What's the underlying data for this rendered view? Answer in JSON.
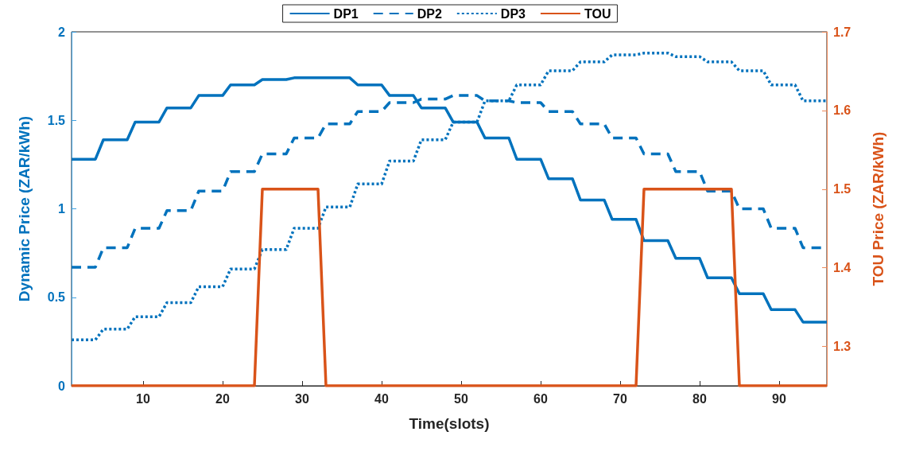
{
  "chart_data": {
    "type": "line",
    "xlabel": "Time(slots)",
    "ylabel": "Dynamic Price (ZAR/kWh)",
    "y2label": "TOU Price (ZAR/kWh)",
    "x": [
      1,
      4,
      5,
      8,
      9,
      12,
      13,
      16,
      17,
      20,
      21,
      24,
      25,
      28,
      29,
      32,
      33,
      36,
      37,
      40,
      41,
      44,
      45,
      48,
      49,
      52,
      53,
      56,
      57,
      60,
      61,
      64,
      65,
      68,
      69,
      72,
      73,
      76,
      77,
      80,
      81,
      84,
      85,
      88,
      89,
      92,
      93,
      96
    ],
    "xlim": [
      1,
      96
    ],
    "xticks": [
      10,
      20,
      30,
      40,
      50,
      60,
      70,
      80,
      90
    ],
    "ylim": [
      0,
      2
    ],
    "yticks": [
      0,
      0.5,
      1,
      1.5,
      2
    ],
    "y2lim": [
      1.25,
      1.7
    ],
    "y2ticks": [
      1.3,
      1.4,
      1.5,
      1.6,
      1.7
    ],
    "grid": false,
    "legend": "top",
    "marker": "none",
    "series": [
      {
        "name": "DP1",
        "color": "#0072bd",
        "line_style": "solid",
        "values": [
          1.28,
          1.28,
          1.39,
          1.39,
          1.49,
          1.49,
          1.57,
          1.57,
          1.64,
          1.64,
          1.7,
          1.7,
          1.73,
          1.73,
          1.74,
          1.74,
          1.74,
          1.74,
          1.7,
          1.7,
          1.64,
          1.64,
          1.57,
          1.57,
          1.49,
          1.49,
          1.4,
          1.4,
          1.28,
          1.28,
          1.17,
          1.17,
          1.05,
          1.05,
          0.94,
          0.94,
          0.82,
          0.82,
          0.72,
          0.72,
          0.61,
          0.61,
          0.52,
          0.52,
          0.43,
          0.43,
          0.36,
          0.36
        ]
      },
      {
        "name": "DP2",
        "color": "#0072bd",
        "line_style": "dashed",
        "values": [
          0.67,
          0.67,
          0.78,
          0.78,
          0.89,
          0.89,
          0.99,
          0.99,
          1.1,
          1.1,
          1.21,
          1.21,
          1.31,
          1.31,
          1.4,
          1.4,
          1.48,
          1.48,
          1.55,
          1.55,
          1.6,
          1.6,
          1.62,
          1.62,
          1.64,
          1.64,
          1.61,
          1.61,
          1.6,
          1.6,
          1.55,
          1.55,
          1.48,
          1.48,
          1.4,
          1.4,
          1.31,
          1.31,
          1.21,
          1.21,
          1.1,
          1.1,
          1.0,
          1.0,
          0.89,
          0.89,
          0.78,
          0.78
        ]
      },
      {
        "name": "DP3",
        "color": "#0072bd",
        "line_style": "dotted",
        "values": [
          0.26,
          0.26,
          0.32,
          0.32,
          0.39,
          0.39,
          0.47,
          0.47,
          0.56,
          0.56,
          0.66,
          0.66,
          0.77,
          0.77,
          0.89,
          0.89,
          1.01,
          1.01,
          1.14,
          1.14,
          1.27,
          1.27,
          1.39,
          1.39,
          1.49,
          1.49,
          1.61,
          1.61,
          1.7,
          1.7,
          1.78,
          1.78,
          1.83,
          1.83,
          1.87,
          1.87,
          1.88,
          1.88,
          1.86,
          1.86,
          1.83,
          1.83,
          1.78,
          1.78,
          1.7,
          1.7,
          1.61,
          1.61
        ]
      },
      {
        "name": "TOU",
        "color": "#d95319",
        "line_style": "solid",
        "axis": "y2",
        "values": [
          1.25,
          1.25,
          1.25,
          1.25,
          1.25,
          1.25,
          1.25,
          1.25,
          1.25,
          1.25,
          1.25,
          1.25,
          1.5,
          1.5,
          1.5,
          1.5,
          1.25,
          1.25,
          1.25,
          1.25,
          1.25,
          1.25,
          1.25,
          1.25,
          1.25,
          1.25,
          1.25,
          1.25,
          1.25,
          1.25,
          1.25,
          1.25,
          1.25,
          1.25,
          1.25,
          1.25,
          1.5,
          1.5,
          1.5,
          1.5,
          1.5,
          1.5,
          1.25,
          1.25,
          1.25,
          1.25,
          1.25,
          1.25
        ]
      }
    ]
  }
}
